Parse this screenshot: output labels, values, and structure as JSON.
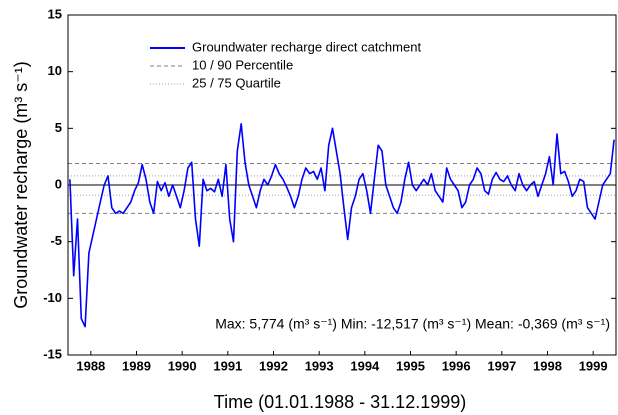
{
  "chart_data": {
    "type": "line",
    "x_label": "Time (01.01.1988 - 31.12.1999)",
    "y_label": "Groundwater recharge (m³ s⁻¹)",
    "annotation": "Max: 5,774 (m³ s⁻¹)   Min: -12,517 (m³ s⁻¹) Mean: -0,369 (m³ s⁻¹)",
    "xlim": [
      1988,
      2000
    ],
    "xticks": [
      {
        "value": 1988.5,
        "label": "1988"
      },
      {
        "value": 1989.5,
        "label": "1989"
      },
      {
        "value": 1990.5,
        "label": "1990"
      },
      {
        "value": 1991.5,
        "label": "1991"
      },
      {
        "value": 1992.5,
        "label": "1992"
      },
      {
        "value": 1993.5,
        "label": "1993"
      },
      {
        "value": 1994.5,
        "label": "1994"
      },
      {
        "value": 1995.5,
        "label": "1995"
      },
      {
        "value": 1996.5,
        "label": "1996"
      },
      {
        "value": 1997.5,
        "label": "1997"
      },
      {
        "value": 1998.5,
        "label": "1998"
      },
      {
        "value": 1999.5,
        "label": "1999"
      }
    ],
    "ylim": [
      -15,
      15
    ],
    "yticks": [
      -15,
      -10,
      -5,
      0,
      5,
      10,
      15
    ],
    "legend": "top-left",
    "series": [
      {
        "name": "Groundwater recharge direct catchment",
        "color": "#0000ff",
        "values": [
          0.5,
          -8.0,
          -3.0,
          -11.8,
          -12.5,
          -6.0,
          -4.5,
          -3.0,
          -1.5,
          0.0,
          0.8,
          -2.0,
          -2.5,
          -2.3,
          -2.5,
          -2.0,
          -1.5,
          -0.5,
          0.2,
          1.8,
          0.5,
          -1.5,
          -2.5,
          0.3,
          -0.5,
          0.2,
          -1.0,
          0.0,
          -1.0,
          -2.0,
          -0.5,
          1.5,
          2.0,
          -3.0,
          -5.4,
          0.5,
          -0.5,
          -0.3,
          -0.6,
          0.5,
          -1.0,
          1.8,
          -3.0,
          -5.0,
          3.0,
          5.4,
          2.0,
          0.0,
          -1.0,
          -2.0,
          -0.5,
          0.5,
          0.0,
          0.8,
          1.8,
          1.0,
          0.5,
          -0.2,
          -1.0,
          -2.0,
          -1.0,
          0.5,
          1.5,
          1.0,
          1.2,
          0.5,
          1.5,
          -0.5,
          3.5,
          5.0,
          3.0,
          1.0,
          -2.0,
          -4.8,
          -2.0,
          -1.0,
          0.5,
          1.0,
          -0.5,
          -2.5,
          0.5,
          3.5,
          3.0,
          0.0,
          -1.0,
          -2.0,
          -2.5,
          -1.5,
          0.5,
          2.0,
          0.0,
          -0.5,
          0.0,
          0.5,
          0.0,
          1.0,
          -0.5,
          -1.0,
          -1.5,
          1.5,
          0.5,
          0.0,
          -0.5,
          -2.0,
          -1.5,
          0.0,
          0.5,
          1.5,
          1.0,
          -0.5,
          -0.8,
          0.5,
          1.1,
          0.5,
          0.3,
          0.8,
          0.0,
          -0.5,
          1.0,
          0.0,
          -0.5,
          0.0,
          0.3,
          -1.0,
          0.0,
          1.0,
          2.5,
          0.0,
          4.5,
          1.0,
          1.2,
          0.3,
          -1.0,
          -0.5,
          0.5,
          0.3,
          -2.0,
          -2.5,
          -3.0,
          -1.5,
          0.0,
          0.5,
          1.0,
          4.0
        ]
      }
    ],
    "reference_lines": [
      {
        "name": "10 / 90 Percentile",
        "color": "#808080",
        "dash": "dashed",
        "values": [
          1.9,
          -2.5
        ]
      },
      {
        "name": "25 / 75 Quartile",
        "color": "#a0a0a0",
        "dash": "dotted",
        "values": [
          0.8,
          -0.9
        ]
      }
    ]
  }
}
